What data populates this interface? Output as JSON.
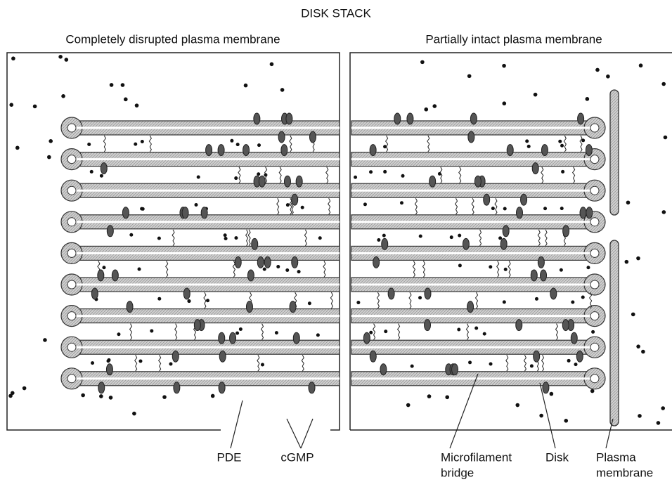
{
  "title": "DISK STACK",
  "panels": [
    {
      "title": "Completely disrupted plasma membrane"
    },
    {
      "title": "Partially intact plasma membrane"
    }
  ],
  "labels": {
    "pde": "PDE",
    "cgmp": "cGMP",
    "microfilament_bridge": [
      "Microfilament",
      "bridge"
    ],
    "disk": "Disk",
    "plasma_membrane": [
      "Plasma",
      "membrane"
    ]
  }
}
